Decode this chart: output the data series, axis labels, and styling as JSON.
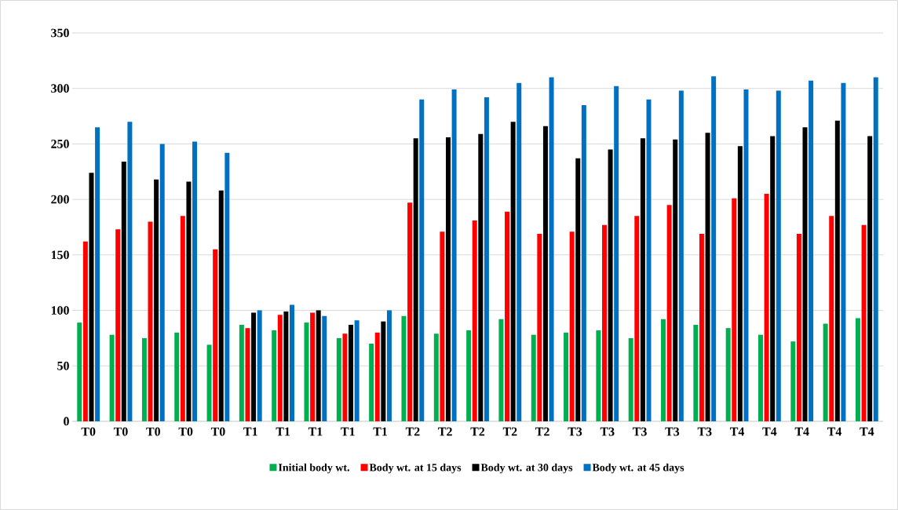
{
  "chart_data": {
    "type": "bar",
    "categories": [
      "T0",
      "T0",
      "T0",
      "T0",
      "T0",
      "T1",
      "T1",
      "T1",
      "T1",
      "T1",
      "T2",
      "T2",
      "T2",
      "T2",
      "T2",
      "T3",
      "T3",
      "T3",
      "T3",
      "T3",
      "T4",
      "T4",
      "T4",
      "T4",
      "T4"
    ],
    "series": [
      {
        "name": "Initial body wt.",
        "color": "#00b050",
        "values": [
          89,
          78,
          75,
          80,
          69,
          87,
          82,
          89,
          75,
          70,
          95,
          79,
          82,
          92,
          78,
          80,
          82,
          75,
          92,
          87,
          84,
          78,
          72,
          88,
          93
        ]
      },
      {
        "name": "Body wt. at 15 days",
        "color": "#ff0000",
        "values": [
          162,
          173,
          180,
          185,
          155,
          84,
          96,
          98,
          79,
          80,
          197,
          171,
          181,
          189,
          169,
          171,
          177,
          185,
          195,
          169,
          201,
          205,
          169,
          185,
          177
        ]
      },
      {
        "name": "Body wt. at 30 days",
        "color": "#000000",
        "values": [
          224,
          234,
          218,
          216,
          208,
          98,
          99,
          100,
          87,
          90,
          255,
          256,
          259,
          270,
          266,
          237,
          245,
          255,
          254,
          260,
          248,
          257,
          265,
          271,
          257
        ]
      },
      {
        "name": "Body wt. at 45 days",
        "color": "#0070c0",
        "values": [
          265,
          270,
          250,
          252,
          242,
          100,
          105,
          95,
          91,
          100,
          290,
          299,
          292,
          305,
          310,
          285,
          302,
          290,
          298,
          311,
          299,
          298,
          307,
          305,
          310
        ]
      }
    ],
    "ylim": [
      0,
      350
    ],
    "yticks": [
      0,
      50,
      100,
      150,
      200,
      250,
      300,
      350
    ],
    "grid": "y",
    "legend": "bottom"
  }
}
